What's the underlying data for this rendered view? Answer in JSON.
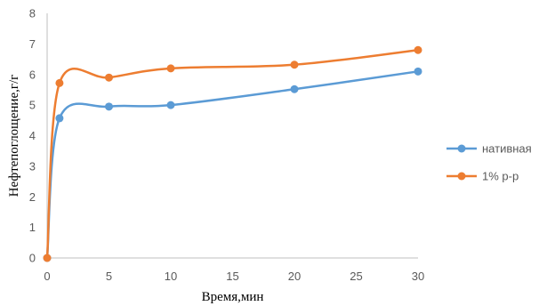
{
  "chart_data": {
    "type": "line",
    "smooth": true,
    "xlabel": "Время,мин",
    "ylabel": "Нефтепоглощение,г/г",
    "xlim": [
      0,
      30
    ],
    "ylim": [
      0,
      8
    ],
    "x_ticks": [
      0,
      5,
      10,
      15,
      20,
      25,
      30
    ],
    "y_ticks": [
      0,
      1,
      2,
      3,
      4,
      5,
      6,
      7,
      8
    ],
    "grid": false,
    "legend_position": "right",
    "x": [
      0,
      1,
      5,
      10,
      20,
      30
    ],
    "series": [
      {
        "name": "нативная",
        "color": "#5B9BD5",
        "values": [
          0,
          4.57,
          4.95,
          5.0,
          5.52,
          6.1
        ]
      },
      {
        "name": "1% р-р",
        "color": "#ED7D31",
        "values": [
          0,
          5.72,
          5.9,
          6.2,
          6.32,
          6.8
        ]
      }
    ]
  }
}
